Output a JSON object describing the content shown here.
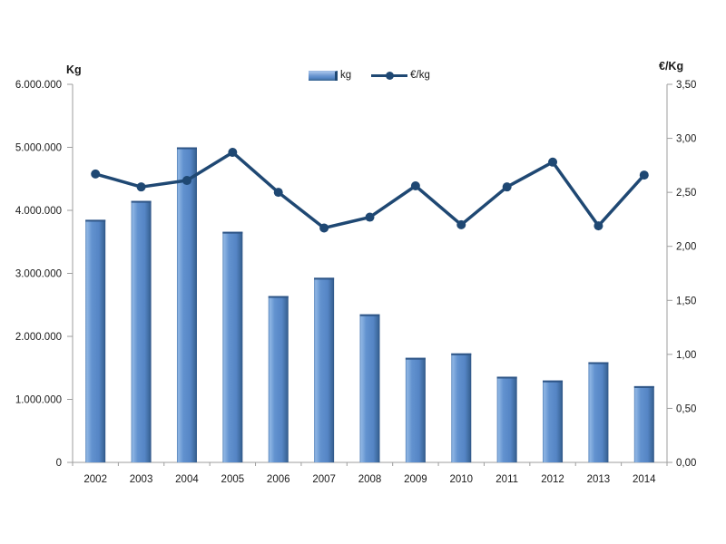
{
  "chart_data": {
    "type": "bar+line combo",
    "categories": [
      "2002",
      "2003",
      "2004",
      "2005",
      "2006",
      "2007",
      "2008",
      "2009",
      "2010",
      "2011",
      "2012",
      "2013",
      "2014"
    ],
    "series": [
      {
        "name": "kg",
        "type": "bar",
        "axis": "left",
        "color": "#5585C5",
        "color_edge_dark": "#2E5586",
        "color_edge_light": "#8FB6E4",
        "values": [
          3850000,
          4150000,
          5000000,
          3660000,
          2640000,
          2930000,
          2350000,
          1660000,
          1730000,
          1360000,
          1300000,
          1590000,
          1210000
        ]
      },
      {
        "name": "€/kg",
        "type": "line",
        "axis": "right",
        "color": "#1F4873",
        "marker": "circle",
        "values": [
          2.67,
          2.55,
          2.61,
          2.87,
          2.5,
          2.17,
          2.27,
          2.56,
          2.2,
          2.55,
          2.78,
          2.19,
          2.66
        ]
      }
    ],
    "left_axis": {
      "title": "Kg",
      "min": 0,
      "max": 6000000,
      "tick_labels": [
        "0",
        "1.000.000",
        "2.000.000",
        "3.000.000",
        "4.000.000",
        "5.000.000",
        "6.000.000"
      ]
    },
    "right_axis": {
      "title": "€/Kg",
      "min": 0,
      "max": 3.5,
      "tick_labels": [
        "0,00",
        "0,50",
        "1,00",
        "1,50",
        "2,00",
        "2,50",
        "3,00",
        "3,50"
      ]
    },
    "legend": [
      {
        "label": "kg"
      },
      {
        "label": "€/kg"
      }
    ],
    "legend_position": "top-center",
    "grid": false,
    "axis_color": "#9E9E9E",
    "text_color": "#1a1a1a",
    "background": "#ffffff"
  }
}
